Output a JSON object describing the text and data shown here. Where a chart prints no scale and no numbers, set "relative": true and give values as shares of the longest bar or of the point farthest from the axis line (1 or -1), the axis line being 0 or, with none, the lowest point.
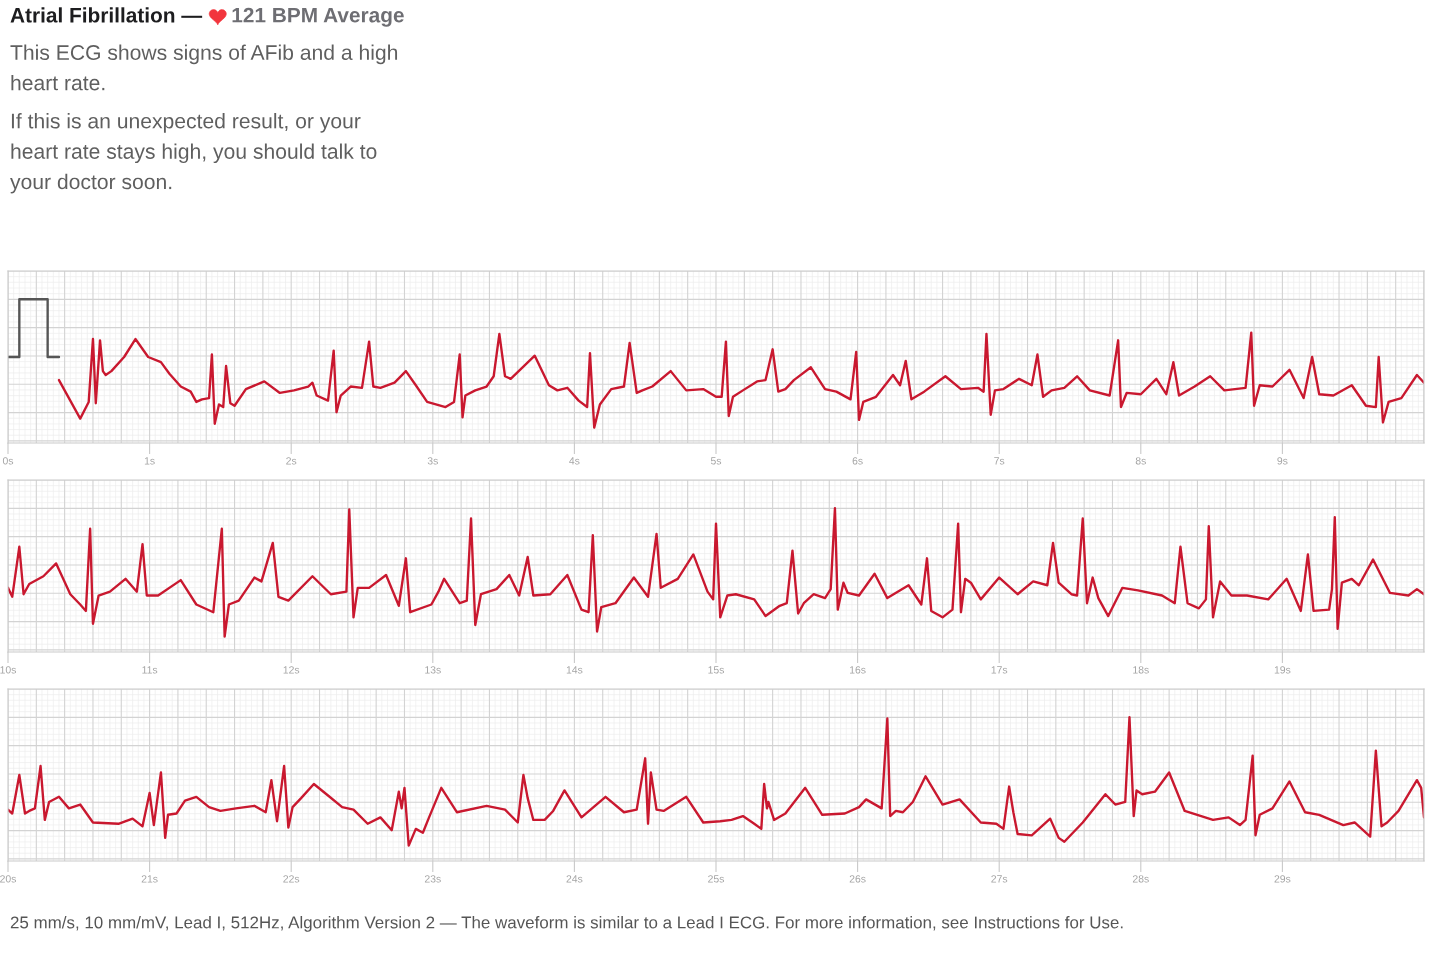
{
  "chart_data": [
    {
      "type": "line",
      "title": "Atrial Fibrillation —",
      "subtitle": "121 BPM Average",
      "annotations": [
        "This ECG shows signs of AFib and a high\nheart rate.",
        "If this is an unexpected result, or your\nheart rate stays high, you should talk to\nyour doctor soon."
      ],
      "x": [
        0.36,
        0.51,
        0.57,
        0.6,
        0.62,
        0.65,
        0.67,
        0.69,
        0.73,
        0.82,
        0.9,
        0.99,
        1.08,
        1.14,
        1.22,
        1.29,
        1.33,
        1.37,
        1.42,
        1.44,
        1.46,
        1.49,
        1.52,
        1.54,
        1.57,
        1.6,
        1.68,
        1.81,
        1.92,
        2.02,
        2.12,
        2.15,
        2.18,
        2.26,
        2.3,
        2.32,
        2.35,
        2.42,
        2.5,
        2.55,
        2.58,
        2.63,
        2.73,
        2.81,
        2.88,
        2.96,
        3.09,
        3.15,
        3.19,
        3.21,
        3.23,
        3.3,
        3.38,
        3.43,
        3.47,
        3.51,
        3.55,
        3.72,
        3.82,
        3.88,
        3.95,
        4.03,
        4.09,
        4.11,
        4.14,
        4.18,
        4.26,
        4.35,
        4.39,
        4.44,
        4.48,
        4.55,
        4.68,
        4.79,
        4.91,
        5.0,
        5.04,
        5.07,
        5.09,
        5.12,
        5.19,
        5.29,
        5.35,
        5.4,
        5.44,
        5.49,
        5.55,
        5.67,
        5.77,
        5.85,
        5.95,
        5.99,
        6.01,
        6.04,
        6.13,
        6.25,
        6.3,
        6.34,
        6.38,
        6.47,
        6.62,
        6.73,
        6.85,
        6.89,
        6.91,
        6.94,
        6.97,
        7.03,
        7.14,
        7.23,
        7.27,
        7.31,
        7.37,
        7.46,
        7.55,
        7.64,
        7.78,
        7.84,
        7.86,
        7.9,
        8.0,
        8.11,
        8.18,
        8.23,
        8.27,
        8.38,
        8.49,
        8.59,
        8.74,
        8.78,
        8.8,
        8.84,
        8.93,
        9.05,
        9.15,
        9.21,
        9.26,
        9.36,
        9.49,
        9.59,
        9.66,
        9.68,
        9.71,
        9.75,
        9.84,
        9.95,
        10.0
      ],
      "series": [
        {
          "color": "#c9182f",
          "values": [
            0.37,
            0.07,
            0.2,
            0.69,
            0.19,
            0.68,
            0.44,
            0.41,
            0.44,
            0.55,
            0.69,
            0.55,
            0.51,
            0.42,
            0.32,
            0.28,
            0.2,
            0.22,
            0.23,
            0.57,
            0.03,
            0.18,
            0.16,
            0.48,
            0.19,
            0.17,
            0.3,
            0.36,
            0.27,
            0.29,
            0.32,
            0.35,
            0.25,
            0.21,
            0.6,
            0.12,
            0.25,
            0.32,
            0.31,
            0.67,
            0.32,
            0.31,
            0.35,
            0.44,
            0.33,
            0.2,
            0.16,
            0.2,
            0.57,
            0.08,
            0.25,
            0.29,
            0.32,
            0.4,
            0.73,
            0.4,
            0.38,
            0.56,
            0.33,
            0.29,
            0.31,
            0.21,
            0.16,
            0.58,
            0.0,
            0.18,
            0.3,
            0.32,
            0.66,
            0.27,
            0.29,
            0.32,
            0.44,
            0.29,
            0.3,
            0.24,
            0.24,
            0.67,
            0.09,
            0.24,
            0.29,
            0.36,
            0.37,
            0.61,
            0.28,
            0.3,
            0.37,
            0.47,
            0.3,
            0.28,
            0.22,
            0.59,
            0.06,
            0.2,
            0.24,
            0.41,
            0.33,
            0.52,
            0.22,
            0.28,
            0.4,
            0.3,
            0.31,
            0.28,
            0.73,
            0.1,
            0.29,
            0.3,
            0.38,
            0.33,
            0.57,
            0.24,
            0.29,
            0.31,
            0.4,
            0.29,
            0.25,
            0.68,
            0.16,
            0.27,
            0.26,
            0.38,
            0.26,
            0.51,
            0.25,
            0.32,
            0.4,
            0.29,
            0.31,
            0.74,
            0.17,
            0.33,
            0.32,
            0.45,
            0.23,
            0.55,
            0.26,
            0.25,
            0.33,
            0.17,
            0.16,
            0.55,
            0.04,
            0.2,
            0.23,
            0.41,
            0.35
          ]
        },
        {
          "color": "#555555",
          "x": [
            0,
            0.08,
            0.08,
            0.28,
            0.28,
            0.36
          ],
          "values": [
            0.55,
            0.55,
            1,
            1,
            0.55,
            0.55
          ]
        }
      ],
      "relative": true,
      "xlim": [
        0,
        10
      ],
      "xticks": [
        {
          "value": 0,
          "label": "0s"
        },
        {
          "value": 1,
          "label": "1s"
        },
        {
          "value": 2,
          "label": "2s"
        },
        {
          "value": 3,
          "label": "3s"
        },
        {
          "value": 4,
          "label": "4s"
        },
        {
          "value": 5,
          "label": "5s"
        },
        {
          "value": 6,
          "label": "6s"
        },
        {
          "value": 7,
          "label": "7s"
        },
        {
          "value": 8,
          "label": "8s"
        },
        {
          "value": 9,
          "label": "9s"
        }
      ],
      "grid": true
    },
    {
      "type": "line",
      "x": [
        10.0,
        10.03,
        10.08,
        10.11,
        10.15,
        10.25,
        10.34,
        10.44,
        10.51,
        10.55,
        10.58,
        10.6,
        10.64,
        10.72,
        10.83,
        10.91,
        10.95,
        10.98,
        11.06,
        11.22,
        11.33,
        11.45,
        11.51,
        11.53,
        11.56,
        11.63,
        11.74,
        11.79,
        11.87,
        11.91,
        11.98,
        12.15,
        12.28,
        12.39,
        12.41,
        12.44,
        12.47,
        12.55,
        12.67,
        12.76,
        12.81,
        12.84,
        12.99,
        13.04,
        13.08,
        13.19,
        13.24,
        13.27,
        13.3,
        13.34,
        13.45,
        13.54,
        13.61,
        13.67,
        13.71,
        13.83,
        13.95,
        14.05,
        14.1,
        14.13,
        14.16,
        14.19,
        14.29,
        14.42,
        14.52,
        14.58,
        14.61,
        14.73,
        14.84,
        14.94,
        14.98,
        15.0,
        15.03,
        15.08,
        15.14,
        15.27,
        15.35,
        15.45,
        15.5,
        15.54,
        15.58,
        15.62,
        15.69,
        15.77,
        15.81,
        15.84,
        15.86,
        15.9,
        15.93,
        16.01,
        16.12,
        16.21,
        16.36,
        16.45,
        16.49,
        16.52,
        16.6,
        16.67,
        16.71,
        16.73,
        16.76,
        16.8,
        16.87,
        17.0,
        17.13,
        17.24,
        17.34,
        17.38,
        17.42,
        17.51,
        17.55,
        17.59,
        17.62,
        17.66,
        17.7,
        17.77,
        17.87,
        17.98,
        18.15,
        18.24,
        18.28,
        18.33,
        18.41,
        18.46,
        18.48,
        18.51,
        18.56,
        18.64,
        18.75,
        18.9,
        19.03,
        19.13,
        19.18,
        19.22,
        19.33,
        19.35,
        19.37,
        19.39,
        19.42,
        19.49,
        19.54,
        19.64,
        19.76,
        19.89,
        19.95,
        20.0
      ],
      "series": [
        {
          "color": "#c9182f",
          "values": [
            0.38,
            0.31,
            0.7,
            0.33,
            0.41,
            0.47,
            0.57,
            0.33,
            0.25,
            0.2,
            0.84,
            0.1,
            0.32,
            0.35,
            0.45,
            0.35,
            0.72,
            0.32,
            0.32,
            0.44,
            0.25,
            0.19,
            0.84,
            0.0,
            0.25,
            0.28,
            0.46,
            0.43,
            0.73,
            0.31,
            0.28,
            0.47,
            0.33,
            0.35,
            0.99,
            0.15,
            0.38,
            0.38,
            0.48,
            0.24,
            0.61,
            0.19,
            0.25,
            0.35,
            0.45,
            0.26,
            0.28,
            0.92,
            0.09,
            0.33,
            0.37,
            0.48,
            0.32,
            0.62,
            0.32,
            0.33,
            0.48,
            0.21,
            0.19,
            0.79,
            0.04,
            0.23,
            0.26,
            0.46,
            0.31,
            0.8,
            0.38,
            0.45,
            0.64,
            0.35,
            0.29,
            0.88,
            0.15,
            0.32,
            0.33,
            0.29,
            0.16,
            0.24,
            0.26,
            0.67,
            0.18,
            0.26,
            0.33,
            0.3,
            0.37,
            1.0,
            0.21,
            0.42,
            0.34,
            0.32,
            0.49,
            0.3,
            0.4,
            0.25,
            0.61,
            0.2,
            0.15,
            0.21,
            0.88,
            0.19,
            0.45,
            0.42,
            0.29,
            0.46,
            0.33,
            0.43,
            0.4,
            0.73,
            0.42,
            0.33,
            0.32,
            0.92,
            0.26,
            0.46,
            0.3,
            0.16,
            0.38,
            0.36,
            0.32,
            0.26,
            0.7,
            0.26,
            0.22,
            0.29,
            0.86,
            0.15,
            0.43,
            0.32,
            0.32,
            0.29,
            0.45,
            0.2,
            0.64,
            0.2,
            0.21,
            0.37,
            0.93,
            0.06,
            0.42,
            0.45,
            0.4,
            0.6,
            0.34,
            0.32,
            0.37,
            0.33
          ]
        }
      ],
      "relative": true,
      "xlim": [
        10,
        20
      ],
      "xticks": [
        {
          "value": 10,
          "label": "10s"
        },
        {
          "value": 11,
          "label": "11s"
        },
        {
          "value": 12,
          "label": "12s"
        },
        {
          "value": 13,
          "label": "13s"
        },
        {
          "value": 14,
          "label": "14s"
        },
        {
          "value": 15,
          "label": "15s"
        },
        {
          "value": 16,
          "label": "16s"
        },
        {
          "value": 17,
          "label": "17s"
        },
        {
          "value": 18,
          "label": "18s"
        },
        {
          "value": 19,
          "label": "19s"
        }
      ],
      "grid": true
    },
    {
      "type": "line",
      "annotations": [
        "25 mm/s, 10 mm/mV, Lead I, 512Hz, Algorithm Version 2 — The waveform is similar to a Lead I ECG. For more information, see Instructions for Use."
      ],
      "x": [
        20.0,
        20.03,
        20.08,
        20.12,
        20.15,
        20.19,
        20.23,
        20.26,
        20.29,
        20.36,
        20.43,
        20.51,
        20.6,
        20.78,
        20.88,
        20.95,
        21.0,
        21.03,
        21.08,
        21.11,
        21.13,
        21.19,
        21.25,
        21.33,
        21.42,
        21.5,
        21.61,
        21.74,
        21.82,
        21.86,
        21.9,
        21.95,
        21.98,
        22.01,
        22.07,
        22.16,
        22.26,
        22.36,
        22.44,
        22.54,
        22.63,
        22.71,
        22.76,
        22.78,
        22.8,
        22.83,
        22.88,
        22.93,
        22.97,
        23.06,
        23.17,
        23.38,
        23.51,
        23.6,
        23.64,
        23.67,
        23.71,
        23.79,
        23.85,
        23.93,
        24.05,
        24.22,
        24.35,
        24.44,
        24.5,
        24.52,
        24.54,
        24.58,
        24.63,
        24.79,
        24.91,
        25.03,
        25.11,
        25.19,
        25.27,
        25.32,
        25.34,
        25.36,
        25.37,
        25.41,
        25.49,
        25.63,
        25.75,
        25.91,
        26.01,
        26.06,
        26.17,
        26.21,
        26.23,
        26.27,
        26.32,
        26.39,
        26.48,
        26.6,
        26.72,
        26.87,
        26.98,
        27.03,
        27.07,
        27.1,
        27.13,
        27.23,
        27.36,
        27.42,
        27.46,
        27.59,
        27.75,
        27.82,
        27.89,
        27.92,
        27.95,
        27.97,
        28.01,
        28.1,
        28.2,
        28.31,
        28.51,
        28.62,
        28.7,
        28.74,
        28.79,
        28.81,
        28.84,
        28.93,
        29.05,
        29.16,
        29.26,
        29.43,
        29.51,
        29.57,
        29.62,
        29.66,
        29.7,
        29.74,
        29.82,
        29.95,
        29.98,
        30.0
      ],
      "series": [
        {
          "color": "#c9182f",
          "values": [
            0.28,
            0.25,
            0.55,
            0.25,
            0.27,
            0.29,
            0.62,
            0.2,
            0.34,
            0.38,
            0.29,
            0.32,
            0.18,
            0.17,
            0.21,
            0.15,
            0.41,
            0.16,
            0.57,
            0.06,
            0.24,
            0.25,
            0.35,
            0.38,
            0.3,
            0.27,
            0.29,
            0.31,
            0.26,
            0.51,
            0.19,
            0.62,
            0.14,
            0.3,
            0.37,
            0.48,
            0.39,
            0.3,
            0.28,
            0.17,
            0.22,
            0.12,
            0.42,
            0.29,
            0.45,
            0.0,
            0.13,
            0.1,
            0.21,
            0.45,
            0.26,
            0.31,
            0.28,
            0.18,
            0.55,
            0.37,
            0.2,
            0.2,
            0.27,
            0.43,
            0.22,
            0.38,
            0.26,
            0.28,
            0.68,
            0.17,
            0.57,
            0.28,
            0.27,
            0.38,
            0.18,
            0.19,
            0.2,
            0.23,
            0.17,
            0.13,
            0.48,
            0.29,
            0.34,
            0.2,
            0.25,
            0.45,
            0.24,
            0.25,
            0.3,
            0.36,
            0.29,
            0.99,
            0.23,
            0.27,
            0.26,
            0.34,
            0.54,
            0.32,
            0.36,
            0.18,
            0.17,
            0.13,
            0.46,
            0.26,
            0.09,
            0.08,
            0.21,
            0.06,
            0.03,
            0.18,
            0.4,
            0.32,
            0.34,
            1.0,
            0.23,
            0.43,
            0.4,
            0.42,
            0.57,
            0.27,
            0.2,
            0.22,
            0.16,
            0.2,
            0.7,
            0.08,
            0.24,
            0.29,
            0.5,
            0.26,
            0.24,
            0.16,
            0.18,
            0.12,
            0.07,
            0.74,
            0.15,
            0.18,
            0.27,
            0.51,
            0.45,
            0.22
          ]
        }
      ],
      "relative": true,
      "xlim": [
        20,
        30
      ],
      "xticks": [
        {
          "value": 20,
          "label": "20s"
        },
        {
          "value": 21,
          "label": "21s"
        },
        {
          "value": 22,
          "label": "22s"
        },
        {
          "value": 23,
          "label": "23s"
        },
        {
          "value": 24,
          "label": "24s"
        },
        {
          "value": 25,
          "label": "25s"
        },
        {
          "value": 26,
          "label": "26s"
        },
        {
          "value": 27,
          "label": "27s"
        },
        {
          "value": 28,
          "label": "28s"
        },
        {
          "value": 29,
          "label": "29s"
        }
      ],
      "grid": true
    }
  ]
}
